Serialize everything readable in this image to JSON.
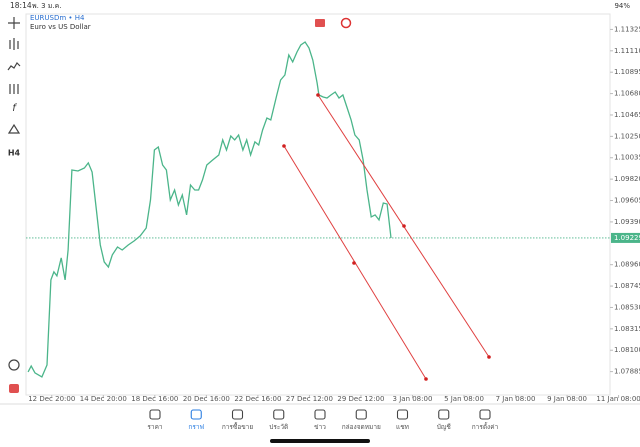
{
  "status_bar": {
    "time": "18:14",
    "date": "พ. 3 ม.ค.",
    "battery": "94%"
  },
  "header": {
    "symbol": "EURUSDm • H4",
    "description": "Euro vs US Dollar"
  },
  "toolbar": {
    "timeframe": "H4"
  },
  "chart_data": {
    "type": "line",
    "color": "#4bb58a",
    "x": [
      0.5,
      1.2,
      2.1,
      3.7,
      4.9,
      5.8,
      6.5,
      7.2,
      8.2,
      9.1,
      9.8,
      10.7,
      12.1,
      13.6,
      14.5,
      15.4,
      16.4,
      17.3,
      18.2,
      19.2,
      20.1,
      21.3,
      22.4,
      23.8,
      25.2,
      26.6,
      28.0,
      29.0,
      29.9,
      30.8,
      31.8,
      32.7,
      33.6,
      34.6,
      35.5,
      36.4,
      37.4,
      38.3,
      39.3,
      40.2,
      41.1,
      42.1,
      43.5,
      44.9,
      45.8,
      46.7,
      47.7,
      48.6,
      49.5,
      50.5,
      51.4,
      52.3,
      53.3,
      54.2,
      55.1,
      56.1,
      57.0,
      58.4,
      59.3,
      60.3,
      61.2,
      62.1,
      63.1,
      64.0,
      65.0,
      65.9,
      66.8,
      67.8,
      68.2,
      69.2,
      70.1,
      71.0,
      72.0,
      72.9,
      73.8,
      74.8,
      75.7,
      76.6,
      77.6,
      78.5,
      79.4,
      80.4,
      81.3,
      82.2,
      83.2,
      84.1,
      85.0
    ],
    "values": [
      1.07882,
      1.07942,
      1.07872,
      1.07832,
      1.07952,
      1.08807,
      1.08887,
      1.08847,
      1.09028,
      1.08807,
      1.09108,
      1.09912,
      1.09902,
      1.09932,
      1.09983,
      1.09892,
      1.0951,
      1.09158,
      1.08988,
      1.08937,
      1.09058,
      1.09138,
      1.09108,
      1.09158,
      1.09199,
      1.09249,
      1.09329,
      1.09611,
      1.10113,
      1.10143,
      1.09962,
      1.09912,
      1.09611,
      1.09711,
      1.0956,
      1.09661,
      1.0946,
      1.09761,
      1.09711,
      1.09711,
      1.09812,
      1.09962,
      1.10013,
      1.10063,
      1.10214,
      1.10113,
      1.10254,
      1.10214,
      1.10264,
      1.10113,
      1.10214,
      1.10063,
      1.10194,
      1.10163,
      1.10314,
      1.10435,
      1.10415,
      1.10666,
      1.10817,
      1.10867,
      1.11068,
      1.10998,
      1.11098,
      1.11168,
      1.11199,
      1.11138,
      1.11018,
      1.10787,
      1.10666,
      1.10646,
      1.10636,
      1.10666,
      1.10696,
      1.10636,
      1.10666,
      1.10535,
      1.10415,
      1.10264,
      1.10214,
      1.10013,
      1.09711,
      1.0944,
      1.0946,
      1.0941,
      1.0958,
      1.0957,
      1.09229
    ],
    "current_price": 1.09229,
    "xlim": [
      0,
      136
    ],
    "xticks": [
      {
        "value": 6,
        "label": "12 Dec 20:00"
      },
      {
        "value": 18,
        "label": "14 Dec 20:00"
      },
      {
        "value": 30,
        "label": "18 Dec 16:00"
      },
      {
        "value": 42,
        "label": "20 Dec 16:00"
      },
      {
        "value": 54,
        "label": "22 Dec 16:00"
      },
      {
        "value": 66,
        "label": "27 Dec 12:00"
      },
      {
        "value": 78,
        "label": "29 Dec 12:00"
      },
      {
        "value": 90,
        "label": "3 Jan 08:00"
      },
      {
        "value": 102,
        "label": "5 Jan 08:00"
      },
      {
        "value": 114,
        "label": "7 Jan 08:00"
      },
      {
        "value": 126,
        "label": "9 Jan 08:00"
      },
      {
        "value": 138,
        "label": "11 Jan 08:00"
      }
    ],
    "ylim": [
      1.0765,
      1.1148
    ],
    "yticks": [
      1.11325,
      {
        "value": 1.1111,
        "label": "1.11110"
      },
      1.10895,
      {
        "value": 1.1068,
        "label": "1.10680"
      },
      1.10465,
      {
        "value": 1.1025,
        "label": "1.10250"
      },
      1.10035,
      {
        "value": 1.0982,
        "label": "1.09820"
      },
      1.09605,
      {
        "value": 1.0939,
        "label": "1.09390"
      },
      {
        "value": 1.0896,
        "label": "1.08960"
      },
      1.08745,
      {
        "value": 1.0853,
        "label": "1.08530"
      },
      1.08315,
      {
        "value": 1.081,
        "label": "1.08100"
      },
      1.07885
    ],
    "grid": false
  },
  "tab_bar": {
    "items": [
      "ราคา",
      "กราฟ",
      "การซื้อขาย",
      "ประวัติ",
      "ข่าว",
      "กล่องจดหมาย",
      "แชท",
      "บัญชี",
      "การตั้งค่า"
    ]
  }
}
